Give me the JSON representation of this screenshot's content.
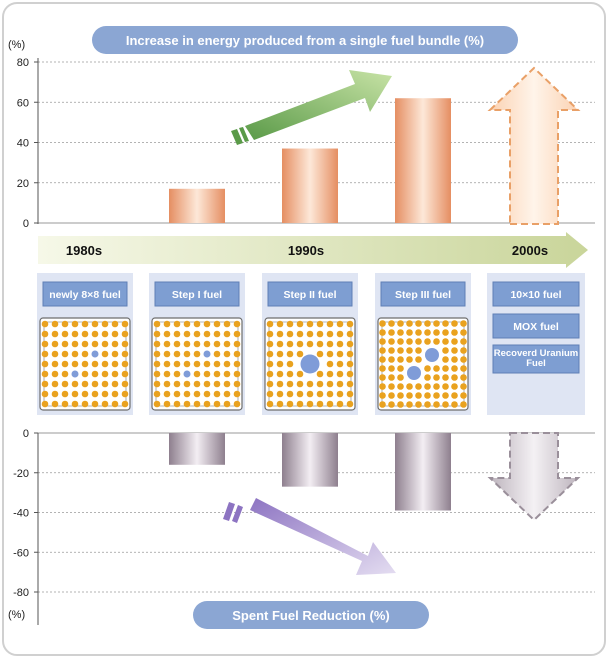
{
  "chart_data": [
    {
      "type": "bar",
      "title": "Increase in energy produced from a single fuel bundle (%)",
      "unit_label": "(%)",
      "ylim": [
        0,
        80
      ],
      "yticks": [
        0,
        20,
        40,
        60,
        80
      ],
      "grid": true,
      "categories": [
        "newly 8×8 fuel",
        "Step I fuel",
        "Step II fuel",
        "Step III fuel",
        "10×10 fuel / MOX fuel / Recoverd Uranium Fuel"
      ],
      "values": [
        0,
        17,
        37,
        62,
        null
      ],
      "future_arrow": true
    },
    {
      "type": "bar",
      "title": "Spent Fuel Reduction (%)",
      "unit_label": "(%)",
      "ylim": [
        -80,
        0
      ],
      "yticks": [
        0,
        -20,
        -40,
        -60,
        -80
      ],
      "grid": true,
      "categories": [
        "newly 8×8 fuel",
        "Step I fuel",
        "Step II fuel",
        "Step III fuel",
        "10×10 fuel / MOX fuel / Recoverd Uranium Fuel"
      ],
      "values": [
        0,
        -16,
        -27,
        -39,
        null
      ],
      "future_arrow": true
    }
  ],
  "timeline": [
    "1980s",
    "1990s",
    "2000s"
  ],
  "fuel_labels": [
    "newly 8×8 fuel",
    "Step I fuel",
    "Step II fuel",
    "Step III fuel"
  ],
  "future_labels": [
    "10×10 fuel",
    "MOX fuel",
    "Recoverd Uranium Fuel"
  ],
  "colors": {
    "title_pill": "#8ba6d3",
    "up_bar": "#e8a07a",
    "down_bar": "#a89aa6",
    "timeline_arrow": "#c8d49a",
    "up_arrow": "#8fbb6a",
    "down_arrow": "#b7a3d6",
    "fuel_rod": "#e9a21f",
    "water_rod": "#7f9cd8",
    "panel": "#dfe5f3",
    "label_box": "#7e9ed2"
  }
}
